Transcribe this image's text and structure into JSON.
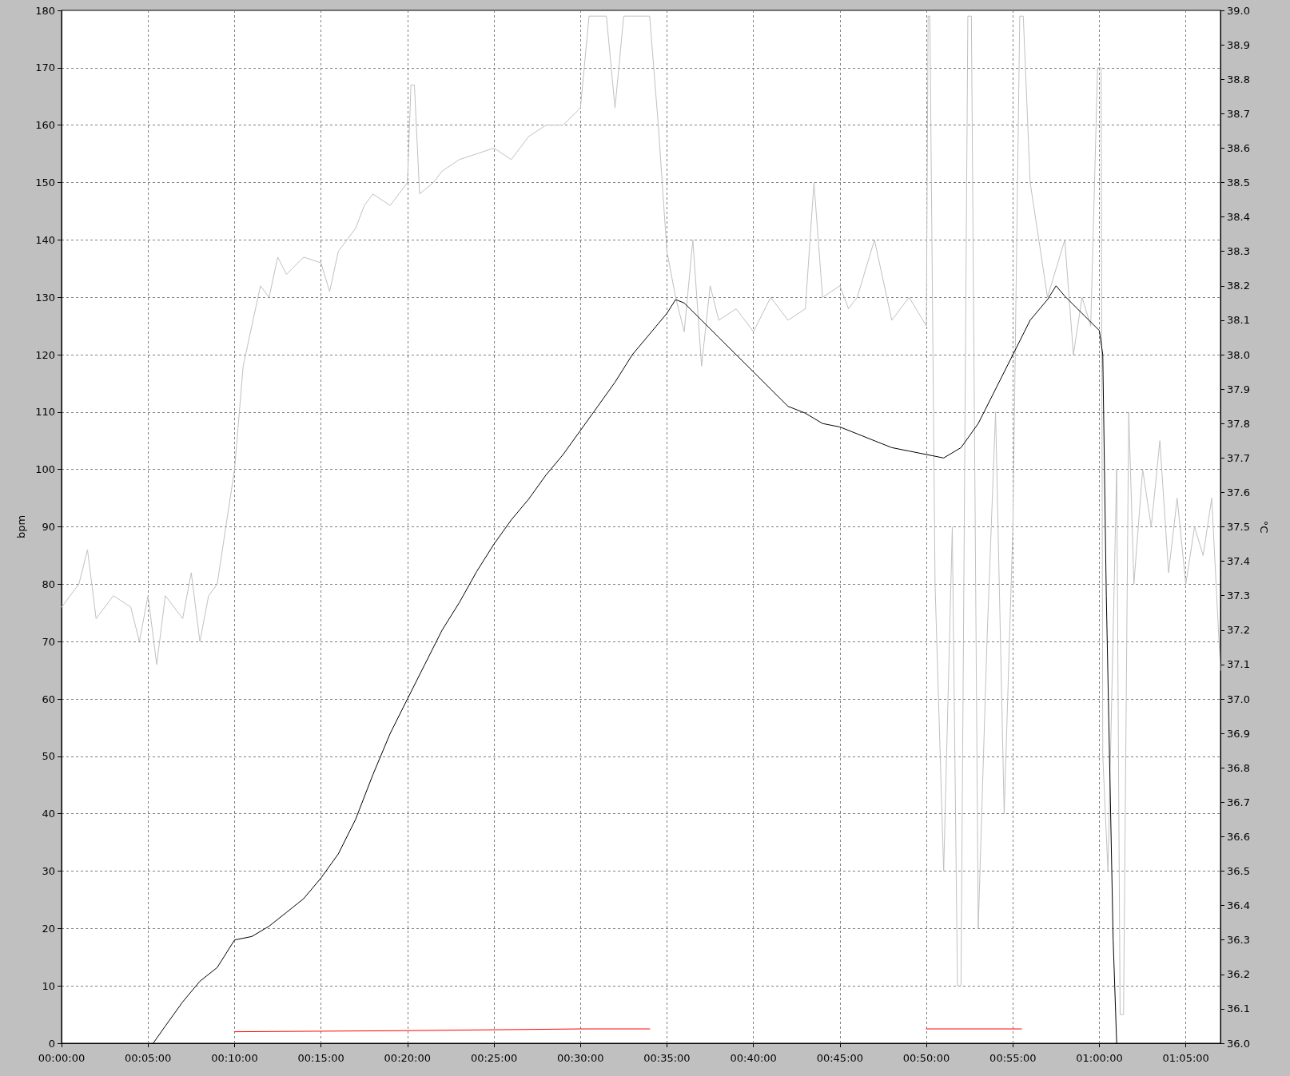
{
  "chart_data": {
    "type": "line",
    "ylabel": "bpm",
    "y2label": "°C",
    "grid": true,
    "marker": "none",
    "line_style": "solid",
    "xlim": [
      0,
      1.1167
    ],
    "xticks": [
      {
        "value": 0,
        "label": "00:00:00"
      },
      {
        "value": 0.0833,
        "label": "00:05:00"
      },
      {
        "value": 0.1667,
        "label": "00:10:00"
      },
      {
        "value": 0.25,
        "label": "00:15:00"
      },
      {
        "value": 0.3333,
        "label": "00:20:00"
      },
      {
        "value": 0.4167,
        "label": "00:25:00"
      },
      {
        "value": 0.5,
        "label": "00:30:00"
      },
      {
        "value": 0.5833,
        "label": "00:35:00"
      },
      {
        "value": 0.6667,
        "label": "00:40:00"
      },
      {
        "value": 0.75,
        "label": "00:45:00"
      },
      {
        "value": 0.8333,
        "label": "00:50:00"
      },
      {
        "value": 0.9167,
        "label": "00:55:00"
      },
      {
        "value": 1,
        "label": "01:00:00"
      },
      {
        "value": 1.0833,
        "label": "01:05:00"
      }
    ],
    "ylim": [
      0,
      180
    ],
    "yticks": [
      0,
      10,
      20,
      30,
      40,
      50,
      60,
      70,
      80,
      90,
      100,
      110,
      120,
      130,
      140,
      150,
      160,
      170,
      180
    ],
    "y2lim": [
      36,
      39
    ],
    "y2ticks": [
      {
        "value": 36,
        "label": "36.0"
      },
      36.1,
      36.2,
      36.3,
      36.4,
      36.5,
      36.6,
      36.7,
      36.8,
      36.9,
      {
        "value": 37,
        "label": "37.0"
      },
      37.1,
      37.2,
      37.3,
      37.4,
      37.5,
      37.6,
      37.7,
      37.8,
      37.9,
      {
        "value": 38,
        "label": "38.0"
      },
      38.1,
      38.2,
      38.3,
      38.4,
      38.5,
      38.6,
      38.7,
      38.8,
      38.9,
      {
        "value": 39,
        "label": "39.0"
      }
    ],
    "series": [
      {
        "color": "#c0c0c0",
        "x": [
          0,
          0.0167,
          0.025,
          0.0333,
          0.05,
          0.0667,
          0.075,
          0.0833,
          0.0917,
          0.1,
          0.1167,
          0.125,
          0.1333,
          0.1417,
          0.15,
          0.1583,
          0.1667,
          0.175,
          0.1833,
          0.1917,
          0.2,
          0.2083,
          0.2167,
          0.2333,
          0.25,
          0.2583,
          0.2667,
          0.2833,
          0.2917,
          0.3,
          0.3167,
          0.3333,
          0.3367,
          0.34,
          0.345,
          0.3583,
          0.3667,
          0.3833,
          0.4,
          0.4167,
          0.4333,
          0.45,
          0.4667,
          0.4833,
          0.5,
          0.5083,
          0.525,
          0.5333,
          0.5417,
          0.5667,
          0.575,
          0.5833,
          0.5917,
          0.6,
          0.6083,
          0.6167,
          0.625,
          0.6333,
          0.65,
          0.6667,
          0.6833,
          0.7,
          0.7167,
          0.725,
          0.7333,
          0.75,
          0.7583,
          0.7667,
          0.7833,
          0.8,
          0.8167,
          0.8333,
          0.835,
          0.8367,
          0.8417,
          0.85,
          0.8583,
          0.8633,
          0.8667,
          0.8733,
          0.8767,
          0.8833,
          0.8917,
          0.9,
          0.9083,
          0.9167,
          0.9233,
          0.9267,
          0.9333,
          0.9417,
          0.95,
          0.9667,
          0.975,
          0.9833,
          0.9917,
          0.9983,
          1.0017,
          1.0033,
          1.0083,
          1.0167,
          1.02,
          1.0233,
          1.0283,
          1.0333,
          1.0417,
          1.05,
          1.0583,
          1.0667,
          1.075,
          1.0833,
          1.0917,
          1.1,
          1.1083,
          1.1167
        ],
        "values": [
          76,
          80,
          86,
          74,
          78,
          76,
          70,
          78,
          66,
          78,
          74,
          82,
          70,
          78,
          80,
          90,
          100,
          118,
          125,
          132,
          130,
          137,
          134,
          137,
          136,
          131,
          138,
          142,
          146,
          148,
          146,
          150,
          167,
          167,
          148,
          150,
          152,
          154,
          155,
          156,
          154,
          158,
          160,
          160,
          163,
          179,
          179,
          163,
          179,
          179,
          160,
          138,
          130,
          124,
          140,
          118,
          132,
          126,
          128,
          124,
          130,
          126,
          128,
          150,
          130,
          132,
          128,
          130,
          140,
          126,
          130,
          125,
          179,
          179,
          80,
          30,
          90,
          10,
          10,
          179,
          179,
          20,
          70,
          110,
          40,
          90,
          179,
          179,
          150,
          140,
          130,
          140,
          120,
          130,
          125,
          170,
          170,
          50,
          30,
          100,
          5,
          5,
          110,
          80,
          100,
          90,
          105,
          82,
          95,
          80,
          90,
          85,
          95,
          65
        ]
      },
      {
        "color": "#000000",
        "axis": "y2",
        "x": [
          0.0883,
          0.1,
          0.1167,
          0.1333,
          0.15,
          0.1667,
          0.1833,
          0.2,
          0.2167,
          0.2333,
          0.25,
          0.2667,
          0.2833,
          0.3,
          0.3167,
          0.3333,
          0.35,
          0.3667,
          0.3833,
          0.4,
          0.4167,
          0.4333,
          0.45,
          0.4667,
          0.4833,
          0.5,
          0.5167,
          0.5333,
          0.55,
          0.5667,
          0.5833,
          0.5917,
          0.6,
          0.6167,
          0.6333,
          0.65,
          0.6667,
          0.6833,
          0.7,
          0.7167,
          0.7333,
          0.75,
          0.7667,
          0.7833,
          0.8,
          0.8167,
          0.8333,
          0.85,
          0.8667,
          0.8833,
          0.9,
          0.9167,
          0.9333,
          0.95,
          0.9583,
          0.9667,
          0.9833,
          1,
          1.0033,
          1.0067,
          1.01,
          1.0133,
          1.0167
        ],
        "values": [
          36.0,
          36.05,
          36.12,
          36.18,
          36.22,
          36.3,
          36.31,
          36.34,
          36.38,
          36.42,
          36.48,
          36.55,
          36.65,
          36.78,
          36.9,
          37.0,
          37.1,
          37.2,
          37.28,
          37.37,
          37.45,
          37.52,
          37.58,
          37.65,
          37.71,
          37.78,
          37.85,
          37.92,
          38.0,
          38.06,
          38.12,
          38.16,
          38.15,
          38.1,
          38.05,
          38.0,
          37.95,
          37.9,
          37.85,
          37.83,
          37.8,
          37.79,
          37.77,
          37.75,
          37.73,
          37.72,
          37.71,
          37.7,
          37.73,
          37.8,
          37.9,
          38.0,
          38.1,
          38.16,
          38.2,
          38.17,
          38.12,
          38.07,
          38.0,
          37.3,
          36.8,
          36.3,
          36.0
        ]
      },
      {
        "color": "#ff0000",
        "x": [
          0.1667,
          0.3333,
          0.5,
          0.5667,
          0.7,
          0.8333,
          0.925
        ],
        "values": [
          2,
          2.2,
          2.5,
          2.5,
          null,
          2.5,
          2.5
        ]
      }
    ]
  }
}
